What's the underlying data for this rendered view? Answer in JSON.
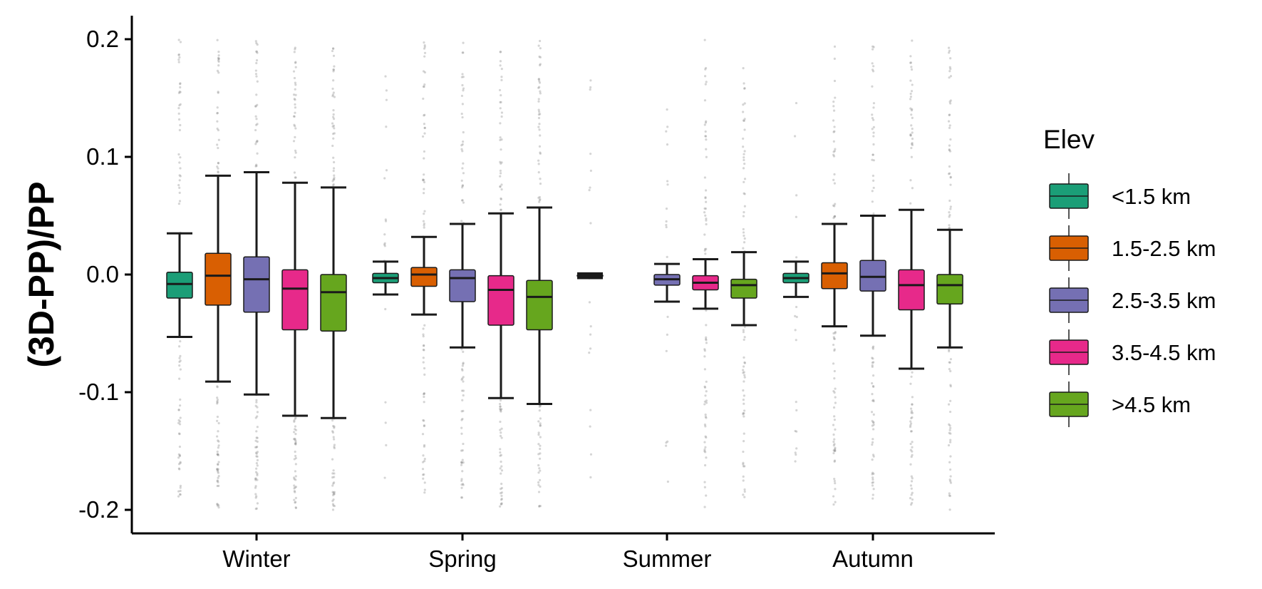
{
  "chart_data": {
    "type": "boxplot",
    "title": "",
    "xlabel": "",
    "ylabel": "(3D-PP)/PP",
    "ylim": [
      -0.22,
      0.22
    ],
    "yticks": [
      -0.2,
      -0.1,
      0.0,
      0.1,
      0.2
    ],
    "ytick_labels": [
      "-0.2",
      "-0.1",
      "0.0",
      "0.1",
      "0.2"
    ],
    "grid": false,
    "legend": {
      "title": "Elev",
      "position": "right"
    },
    "categories": [
      "Winter",
      "Spring",
      "Summer",
      "Autumn"
    ],
    "series": [
      {
        "name": "<1.5 km",
        "color": "#1b9e77",
        "boxes": [
          {
            "whisker_low": -0.053,
            "q1": -0.02,
            "median": -0.008,
            "q3": 0.002,
            "whisker_high": 0.035
          },
          {
            "whisker_low": -0.017,
            "q1": -0.007,
            "median": -0.003,
            "q3": 0.001,
            "whisker_high": 0.011
          },
          {
            "whisker_low": -0.003,
            "q1": -0.002,
            "median": -0.001,
            "q3": 0.0,
            "whisker_high": 0.001
          },
          {
            "whisker_low": -0.019,
            "q1": -0.007,
            "median": -0.003,
            "q3": 0.001,
            "whisker_high": 0.011
          }
        ]
      },
      {
        "name": "1.5-2.5 km",
        "color": "#d95f02",
        "boxes": [
          {
            "whisker_low": -0.091,
            "q1": -0.026,
            "median": -0.001,
            "q3": 0.018,
            "whisker_high": 0.084
          },
          {
            "whisker_low": -0.034,
            "q1": -0.01,
            "median": 0.0,
            "q3": 0.006,
            "whisker_high": 0.032
          },
          null,
          {
            "whisker_low": -0.044,
            "q1": -0.012,
            "median": 0.001,
            "q3": 0.01,
            "whisker_high": 0.043
          }
        ]
      },
      {
        "name": "2.5-3.5 km",
        "color": "#7570b3",
        "boxes": [
          {
            "whisker_low": -0.102,
            "q1": -0.032,
            "median": -0.004,
            "q3": 0.015,
            "whisker_high": 0.087
          },
          {
            "whisker_low": -0.062,
            "q1": -0.023,
            "median": -0.003,
            "q3": 0.004,
            "whisker_high": 0.043
          },
          {
            "whisker_low": -0.023,
            "q1": -0.009,
            "median": -0.004,
            "q3": 0.0,
            "whisker_high": 0.009
          },
          {
            "whisker_low": -0.052,
            "q1": -0.014,
            "median": -0.002,
            "q3": 0.012,
            "whisker_high": 0.05
          }
        ]
      },
      {
        "name": "3.5-4.5 km",
        "color": "#e7298a",
        "boxes": [
          {
            "whisker_low": -0.12,
            "q1": -0.047,
            "median": -0.012,
            "q3": 0.004,
            "whisker_high": 0.078
          },
          {
            "whisker_low": -0.105,
            "q1": -0.043,
            "median": -0.013,
            "q3": -0.001,
            "whisker_high": 0.052
          },
          {
            "whisker_low": -0.029,
            "q1": -0.013,
            "median": -0.007,
            "q3": -0.001,
            "whisker_high": 0.013
          },
          {
            "whisker_low": -0.08,
            "q1": -0.03,
            "median": -0.009,
            "q3": 0.004,
            "whisker_high": 0.055
          }
        ]
      },
      {
        "name": ">4.5 km",
        "color": "#66a61e",
        "boxes": [
          {
            "whisker_low": -0.122,
            "q1": -0.048,
            "median": -0.015,
            "q3": 0.0,
            "whisker_high": 0.074
          },
          {
            "whisker_low": -0.11,
            "q1": -0.047,
            "median": -0.019,
            "q3": -0.005,
            "whisker_high": 0.057
          },
          {
            "whisker_low": -0.043,
            "q1": -0.02,
            "median": -0.009,
            "q3": -0.004,
            "whisker_high": 0.019
          },
          {
            "whisker_low": -0.062,
            "q1": -0.025,
            "median": -0.009,
            "q3": 0.0,
            "whisker_high": 0.038
          }
        ]
      }
    ]
  }
}
